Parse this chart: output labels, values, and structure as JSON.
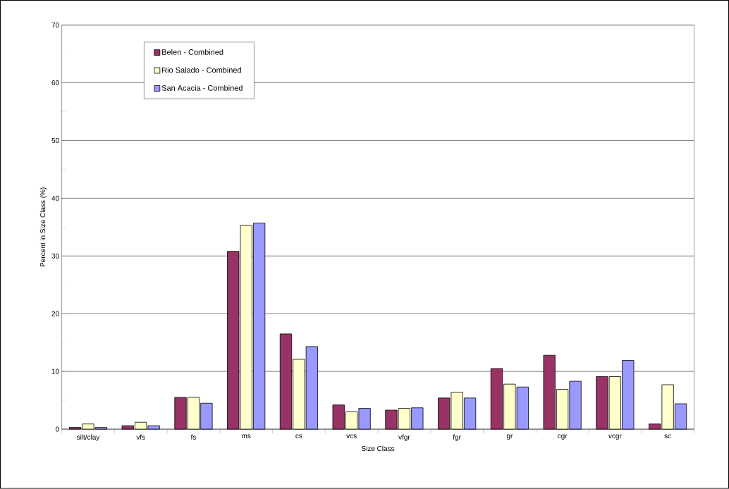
{
  "chart_data": {
    "type": "bar",
    "xlabel": "Size Class",
    "ylabel": "Percent in Size Class (%)",
    "categories": [
      "silt/clay",
      "vfs",
      "fs",
      "ms",
      "cs",
      "vcs",
      "vfgr",
      "fgr",
      "gr",
      "cgr",
      "vcgr",
      "sc"
    ],
    "series": [
      {
        "name": "Belen - Combined",
        "color": "#993366",
        "values": [
          0.3,
          0.6,
          5.5,
          30.8,
          16.5,
          4.2,
          3.3,
          5.4,
          10.5,
          12.8,
          9.1,
          0.9
        ]
      },
      {
        "name": "Rio Salado - Combined",
        "color": "#ffffcc",
        "values": [
          0.9,
          1.2,
          5.5,
          35.3,
          12.1,
          3.0,
          3.6,
          6.4,
          7.8,
          6.9,
          9.1,
          7.7
        ]
      },
      {
        "name": "San Acacia - Combined",
        "color": "#9999ff",
        "values": [
          0.3,
          0.6,
          4.5,
          35.7,
          14.3,
          3.6,
          3.7,
          5.4,
          7.3,
          8.3,
          11.9,
          4.4
        ]
      }
    ],
    "ylim": [
      0,
      70
    ],
    "yticks": [
      0,
      10,
      20,
      30,
      40,
      50,
      60,
      70
    ],
    "grid": "y",
    "legend": "top left"
  }
}
